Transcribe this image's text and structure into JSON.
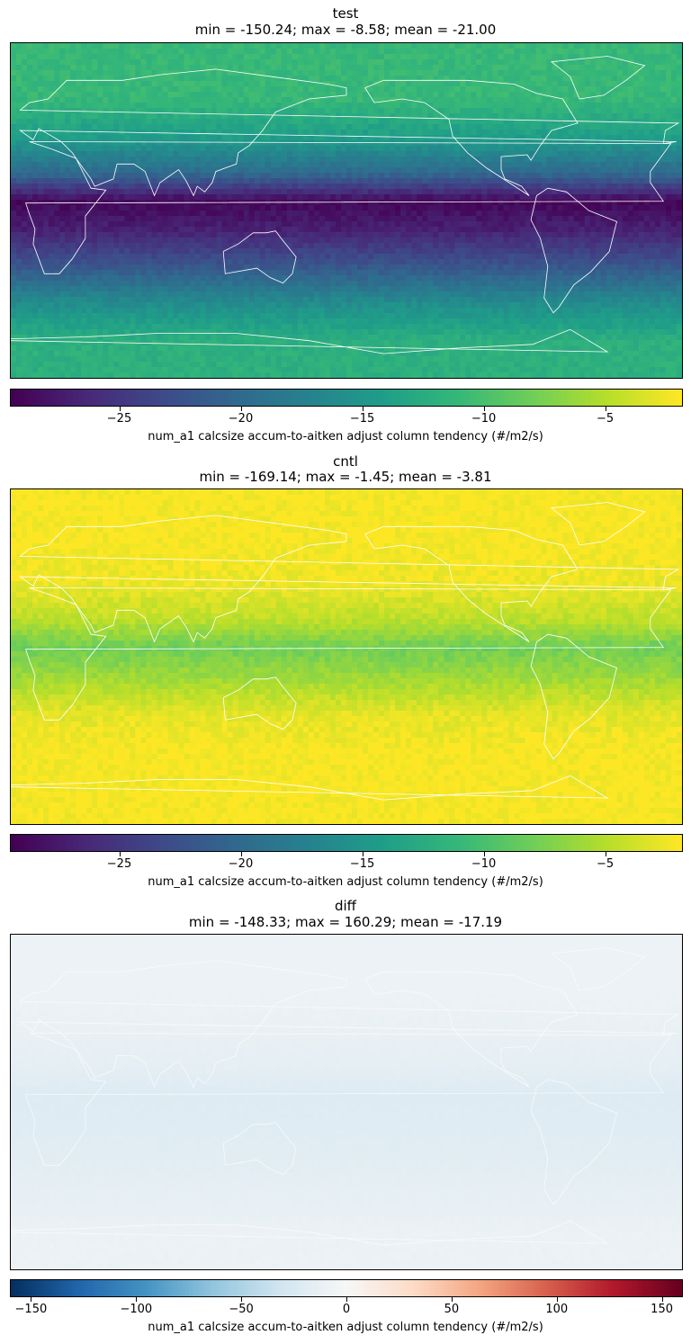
{
  "chart_data": [
    {
      "type": "heatmap",
      "title": "test",
      "subtitle": "min = -150.24; max = -8.58; mean = -21.00",
      "colormap": "viridis",
      "vmin": -29.5,
      "vmax": -1.8,
      "colorbar_ticks": [
        -25,
        -20,
        -15,
        -10,
        -5
      ],
      "colorbar_tick_labels": [
        "−25",
        "−20",
        "−15",
        "−10",
        "−5"
      ],
      "colorbar_label": "num_a1 calcsize accum-to-aitken adjust column tendency (#/m2/s)",
      "field_profile": {
        "latitude": [
          90,
          60,
          40,
          20,
          5,
          -10,
          -30,
          -50,
          -70,
          -90
        ],
        "value": [
          -11,
          -11,
          -14,
          -20,
          -29,
          -27,
          -22,
          -16,
          -12,
          -12
        ]
      }
    },
    {
      "type": "heatmap",
      "title": "cntl",
      "subtitle": "min = -169.14; max = -1.45; mean = -3.81",
      "colormap": "viridis",
      "vmin": -29.5,
      "vmax": -1.8,
      "colorbar_ticks": [
        -25,
        -20,
        -15,
        -10,
        -5
      ],
      "colorbar_tick_labels": [
        "−25",
        "−20",
        "−15",
        "−10",
        "−5"
      ],
      "colorbar_label": "num_a1 calcsize accum-to-aitken adjust column tendency (#/m2/s)",
      "field_profile": {
        "latitude": [
          90,
          60,
          40,
          20,
          5,
          -10,
          -30,
          -50,
          -70,
          -90
        ],
        "value": [
          -2,
          -2,
          -2.5,
          -4.5,
          -8,
          -6,
          -3,
          -2,
          -2,
          -2
        ]
      }
    },
    {
      "type": "heatmap",
      "title": "diff",
      "subtitle": "min = -148.33; max = 160.29; mean = -17.19",
      "colormap": "RdBu_r",
      "vmin": -160,
      "vmax": 160,
      "colorbar_ticks": [
        -150,
        -100,
        -50,
        0,
        50,
        100,
        150
      ],
      "colorbar_tick_labels": [
        "−150",
        "−100",
        "−50",
        "0",
        "50",
        "100",
        "150"
      ],
      "colorbar_label": "num_a1 calcsize accum-to-aitken adjust column tendency (#/m2/s)",
      "field_profile": {
        "latitude": [
          90,
          60,
          40,
          20,
          5,
          -10,
          -30,
          -50,
          -70,
          -90
        ],
        "value": [
          -9,
          -9,
          -11,
          -15,
          -21,
          -20,
          -18,
          -14,
          -10,
          -10
        ]
      }
    }
  ]
}
